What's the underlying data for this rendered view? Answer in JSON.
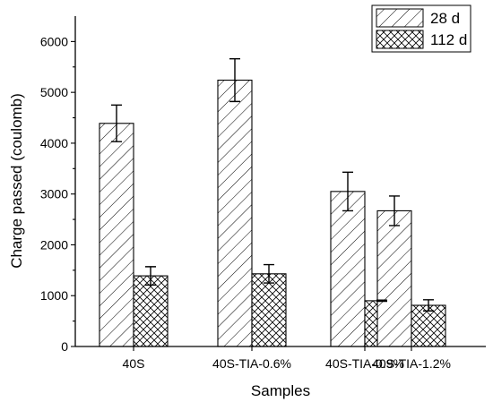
{
  "chart_data": {
    "type": "bar",
    "xlabel": "Samples",
    "ylabel": "Charge passed (coulomb)",
    "categories": [
      "40S",
      "40S-TIA-0.6%",
      "40S-TIA-0.9%",
      "40S-TIA-1.2%"
    ],
    "ylim": [
      0,
      6500
    ],
    "yticks": [
      0,
      1000,
      2000,
      3000,
      4000,
      5000,
      6000
    ],
    "series": [
      {
        "name": "28 d",
        "pattern": "diagonal-hatch",
        "values": [
          4390,
          5240,
          3050,
          2670
        ],
        "errors": [
          360,
          420,
          380,
          290
        ]
      },
      {
        "name": "112 d",
        "pattern": "cross-hatch",
        "values": [
          1390,
          1430,
          900,
          810
        ],
        "errors": [
          180,
          180,
          12,
          110
        ]
      }
    ],
    "legend_position": "top-right",
    "grid": false
  }
}
